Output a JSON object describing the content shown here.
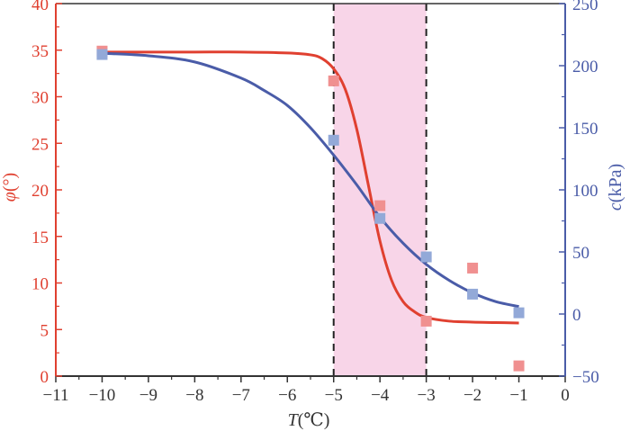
{
  "chart_data": {
    "type": "scatter",
    "xlabel": {
      "symbol": "T",
      "unit": "(℃)"
    },
    "ylabel_left": {
      "symbol": "φ",
      "unit": "(°)"
    },
    "ylabel_right": {
      "symbol": "c",
      "unit": "(kPa)"
    },
    "xlim": [
      -11,
      0
    ],
    "ylim_left": [
      0,
      40
    ],
    "ylim_right": [
      -50,
      250
    ],
    "x_ticks": [
      -11,
      -10,
      -9,
      -8,
      -7,
      -6,
      -5,
      -4,
      -3,
      -2,
      -1,
      0
    ],
    "x_tick_labels": [
      "−11",
      "−10",
      "−9",
      "−8",
      "−7",
      "−6",
      "−5",
      "−4",
      "−3",
      "−2",
      "−1",
      "0"
    ],
    "y_left_ticks": [
      0,
      5,
      10,
      15,
      20,
      25,
      30,
      35,
      40
    ],
    "y_left_tick_labels": [
      "0",
      "5",
      "10",
      "15",
      "20",
      "25",
      "30",
      "35",
      "40"
    ],
    "y_right_ticks": [
      -50,
      0,
      50,
      100,
      150,
      200,
      250
    ],
    "y_right_tick_labels": [
      "−50",
      "0",
      "50",
      "100",
      "150",
      "200",
      "250"
    ],
    "shaded_region": {
      "x_range": [
        -5,
        -3
      ],
      "color": "#f8d5e8"
    },
    "dashed_lines_x": [
      -5,
      -3
    ],
    "series": [
      {
        "axis": "left",
        "color": "#e04030",
        "marker_color": "#f09090",
        "points_x": [
          -10,
          -5,
          -4,
          -3,
          -2,
          -1
        ],
        "points_y": [
          34.9,
          31.7,
          18.3,
          5.9,
          11.6,
          1.1
        ],
        "fit_x": [
          -10,
          -9,
          -8,
          -7,
          -6,
          -5.5,
          -5.25,
          -5,
          -4.75,
          -4.5,
          -4.25,
          -4,
          -3.75,
          -3.5,
          -3.25,
          -3,
          -2.5,
          -2,
          -1.5,
          -1
        ],
        "fit_y": [
          34.8,
          34.8,
          34.8,
          34.8,
          34.7,
          34.5,
          34.1,
          33.0,
          30.8,
          26.5,
          20.5,
          14.5,
          10.3,
          8.0,
          6.9,
          6.3,
          5.9,
          5.8,
          5.75,
          5.7
        ]
      },
      {
        "axis": "right",
        "color": "#4a5ca8",
        "marker_color": "#93a9d8",
        "points_x": [
          -10,
          -5,
          -4,
          -3,
          -2,
          -1
        ],
        "points_y": [
          209,
          140,
          77,
          46,
          16,
          1
        ],
        "fit_x": [
          -10,
          -9,
          -8,
          -7,
          -6.5,
          -6,
          -5.5,
          -5,
          -4.5,
          -4,
          -3.5,
          -3,
          -2.5,
          -2,
          -1.5,
          -1
        ],
        "fit_y": [
          210,
          208,
          203,
          190,
          180,
          168,
          150,
          128,
          104,
          78,
          57,
          40,
          27,
          17,
          10,
          6
        ]
      }
    ],
    "colors": {
      "left_axis": "#e04030",
      "right_axis": "#4a5ca8",
      "bottom_axis": "#333333"
    }
  }
}
